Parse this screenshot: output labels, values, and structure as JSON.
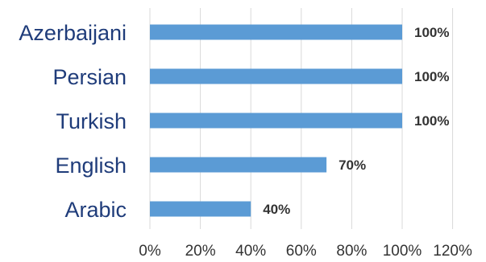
{
  "chart_data": {
    "type": "bar",
    "orientation": "horizontal",
    "categories": [
      "Azerbaijani",
      "Persian",
      "Turkish",
      "English",
      "Arabic"
    ],
    "values": [
      100,
      100,
      100,
      70,
      40
    ],
    "value_format": "percent",
    "data_labels": [
      "100%",
      "100%",
      "100%",
      "70%",
      "40%"
    ],
    "xlim": [
      0,
      120
    ],
    "x_ticks": [
      "0%",
      "20%",
      "40%",
      "60%",
      "80%",
      "100%",
      "120%"
    ],
    "grid": "vertical",
    "legend": "none",
    "colors": {
      "bar": "#5b9bd5",
      "grid": "#d9d9d9",
      "category_text": "#1f3c7a",
      "label_text": "#333333"
    }
  }
}
